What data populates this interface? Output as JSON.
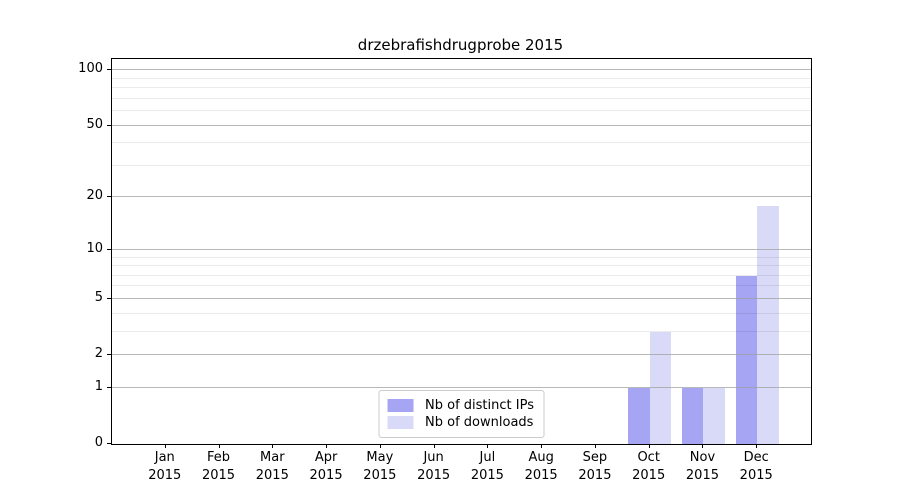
{
  "chart_data": {
    "type": "bar",
    "title": "drzebrafishdrugprobe 2015",
    "categories": [
      "Jan",
      "Feb",
      "Mar",
      "Apr",
      "May",
      "Jun",
      "Jul",
      "Aug",
      "Sep",
      "Oct",
      "Nov",
      "Dec"
    ],
    "category_year": "2015",
    "series": [
      {
        "name": "Nb of distinct IPs",
        "color": "#a5a5f3",
        "values": [
          0,
          0,
          0,
          0,
          0,
          0,
          0,
          0,
          0,
          1,
          1,
          7
        ]
      },
      {
        "name": "Nb of downloads",
        "color": "#d9d9f8",
        "values": [
          0,
          0,
          0,
          0,
          0,
          0,
          0,
          0,
          0,
          3,
          1,
          18
        ]
      }
    ],
    "yscale": "log1p",
    "ylim": [
      0,
      115
    ],
    "yticks": [
      0,
      1,
      2,
      5,
      10,
      20,
      50,
      100
    ],
    "yticks_minor": [
      3,
      4,
      6,
      7,
      8,
      9,
      30,
      40,
      60,
      70,
      80,
      90
    ],
    "xlim": [
      -1,
      12
    ],
    "grid": "horizontal",
    "legend_position": "lower center",
    "colors": {
      "grid_major": "#b0b0b0",
      "grid_minor": "#e8e8e8",
      "axis": "#000000",
      "background": "#ffffff"
    }
  }
}
